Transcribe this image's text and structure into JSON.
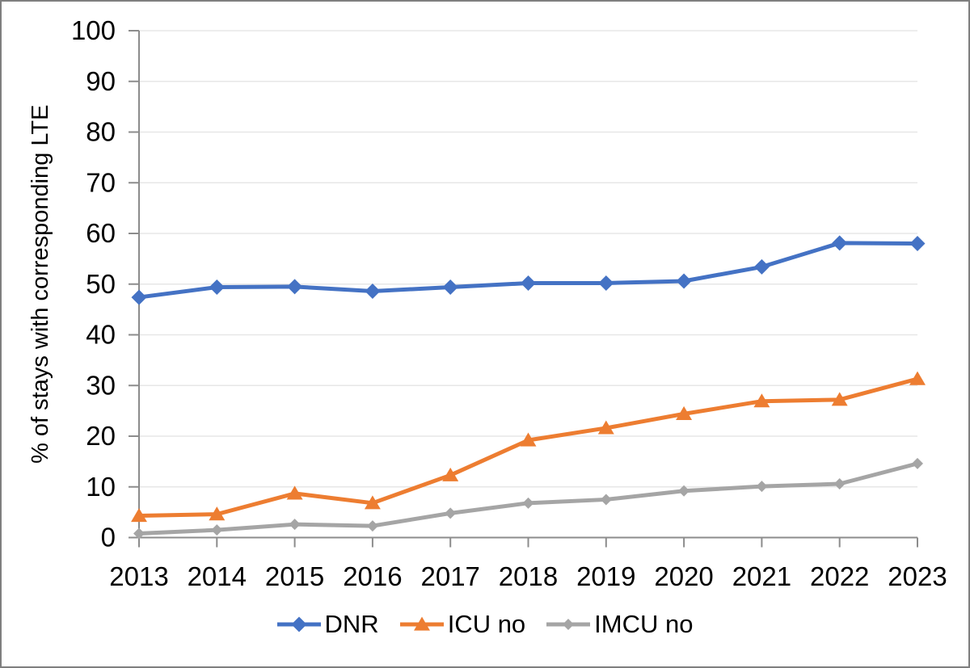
{
  "chart_data": {
    "type": "line",
    "title": "",
    "xlabel": "",
    "ylabel": "% of stays with corresponding LTE",
    "x": [
      2013,
      2014,
      2015,
      2016,
      2017,
      2018,
      2019,
      2020,
      2021,
      2022,
      2023
    ],
    "series": [
      {
        "name": "DNR",
        "color": "#4472C4",
        "marker": "diamond",
        "marker_size": 9.5,
        "values": [
          47.4,
          49.4,
          49.5,
          48.6,
          49.4,
          50.2,
          50.2,
          50.6,
          53.4,
          58.1,
          58.0
        ]
      },
      {
        "name": "ICU no",
        "color": "#ED7D31",
        "marker": "triangle",
        "marker_size": 9.5,
        "values": [
          4.3,
          4.6,
          8.7,
          6.8,
          12.3,
          19.2,
          21.6,
          24.4,
          26.9,
          27.2,
          31.3
        ]
      },
      {
        "name": "IMCU no",
        "color": "#A5A5A5",
        "marker": "diamond",
        "marker_size": 7,
        "values": [
          0.8,
          1.5,
          2.6,
          2.3,
          4.8,
          6.8,
          7.5,
          9.2,
          10.1,
          10.6,
          14.6
        ]
      }
    ],
    "ylim": [
      0,
      100
    ],
    "yticks": [
      0,
      10,
      20,
      30,
      40,
      50,
      60,
      70,
      80,
      90,
      100
    ],
    "grid": true,
    "legend_position": "bottom",
    "colors": {
      "grid_line": "#E7E7E7",
      "axis_line": "#8C8C8C",
      "tick_label": "#000000",
      "frame_border": "#7F7F7F",
      "background": "#FFFFFF"
    }
  }
}
